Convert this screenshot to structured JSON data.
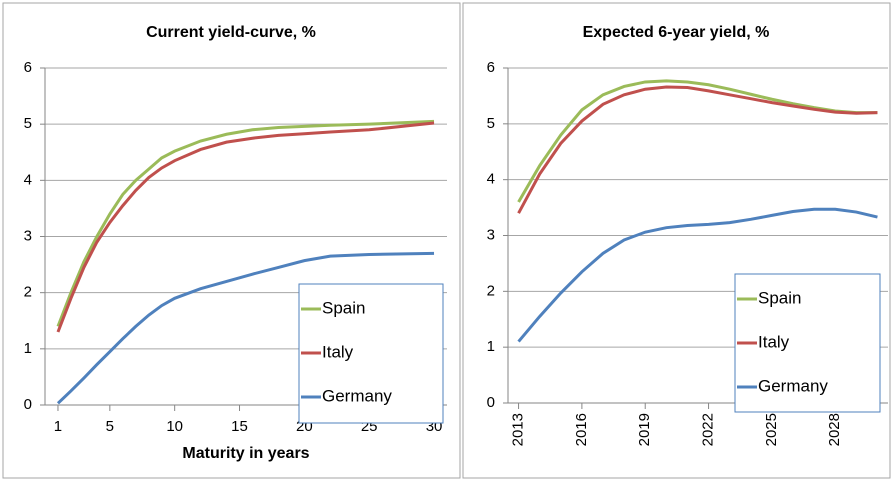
{
  "chart_data": [
    {
      "type": "line",
      "title": "Current yield-curve, %",
      "x_label": "Maturity in years",
      "x": [
        1,
        2,
        3,
        4,
        5,
        6,
        7,
        8,
        9,
        10,
        12,
        14,
        16,
        18,
        20,
        22,
        25,
        30
      ],
      "series": [
        {
          "name": "Spain",
          "color": "#9bbb59",
          "values": [
            1.4,
            2.0,
            2.55,
            3.0,
            3.4,
            3.75,
            4.0,
            4.2,
            4.4,
            4.52,
            4.7,
            4.82,
            4.9,
            4.94,
            4.96,
            4.98,
            5.0,
            5.05
          ]
        },
        {
          "name": "Italy",
          "color": "#c0504d",
          "values": [
            1.3,
            1.9,
            2.45,
            2.9,
            3.25,
            3.55,
            3.82,
            4.05,
            4.22,
            4.35,
            4.55,
            4.68,
            4.75,
            4.8,
            4.83,
            4.86,
            4.9,
            5.02
          ]
        },
        {
          "name": "Germany",
          "color": "#4f81bd",
          "values": [
            0.03,
            0.25,
            0.48,
            0.72,
            0.95,
            1.18,
            1.4,
            1.6,
            1.77,
            1.9,
            2.07,
            2.2,
            2.33,
            2.45,
            2.57,
            2.65,
            2.68,
            2.7
          ]
        }
      ],
      "xlim": [
        0,
        31
      ],
      "xticks": [
        1,
        5,
        10,
        15,
        20,
        25,
        30
      ],
      "ylim": [
        0,
        6
      ],
      "yticks": [
        0,
        1,
        2,
        3,
        4,
        5,
        6
      ],
      "grid": true,
      "legend": "lower right"
    },
    {
      "type": "line",
      "title": "Expected 6-year yield, %",
      "x": [
        2013,
        2014,
        2015,
        2016,
        2017,
        2018,
        2019,
        2020,
        2021,
        2022,
        2023,
        2024,
        2025,
        2026,
        2027,
        2028,
        2029,
        2030
      ],
      "series": [
        {
          "name": "Spain",
          "color": "#9bbb59",
          "values": [
            3.6,
            4.25,
            4.8,
            5.25,
            5.52,
            5.67,
            5.75,
            5.77,
            5.75,
            5.7,
            5.62,
            5.53,
            5.44,
            5.36,
            5.29,
            5.23,
            5.2,
            5.2
          ]
        },
        {
          "name": "Italy",
          "color": "#c0504d",
          "values": [
            3.4,
            4.1,
            4.65,
            5.05,
            5.35,
            5.52,
            5.62,
            5.66,
            5.65,
            5.59,
            5.52,
            5.45,
            5.38,
            5.32,
            5.26,
            5.21,
            5.19,
            5.2
          ]
        },
        {
          "name": "Germany",
          "color": "#4f81bd",
          "values": [
            1.1,
            1.55,
            1.97,
            2.35,
            2.68,
            2.92,
            3.06,
            3.14,
            3.18,
            3.2,
            3.23,
            3.29,
            3.36,
            3.43,
            3.47,
            3.47,
            3.42,
            3.33
          ]
        }
      ],
      "xlim": [
        2012.5,
        2030.5
      ],
      "xticks": [
        2013,
        2016,
        2019,
        2022,
        2025,
        2028
      ],
      "xtick_rotation": -90,
      "ylim": [
        0,
        6
      ],
      "yticks": [
        0,
        1,
        2,
        3,
        4,
        5,
        6
      ],
      "grid": true,
      "legend": "lower right"
    }
  ]
}
